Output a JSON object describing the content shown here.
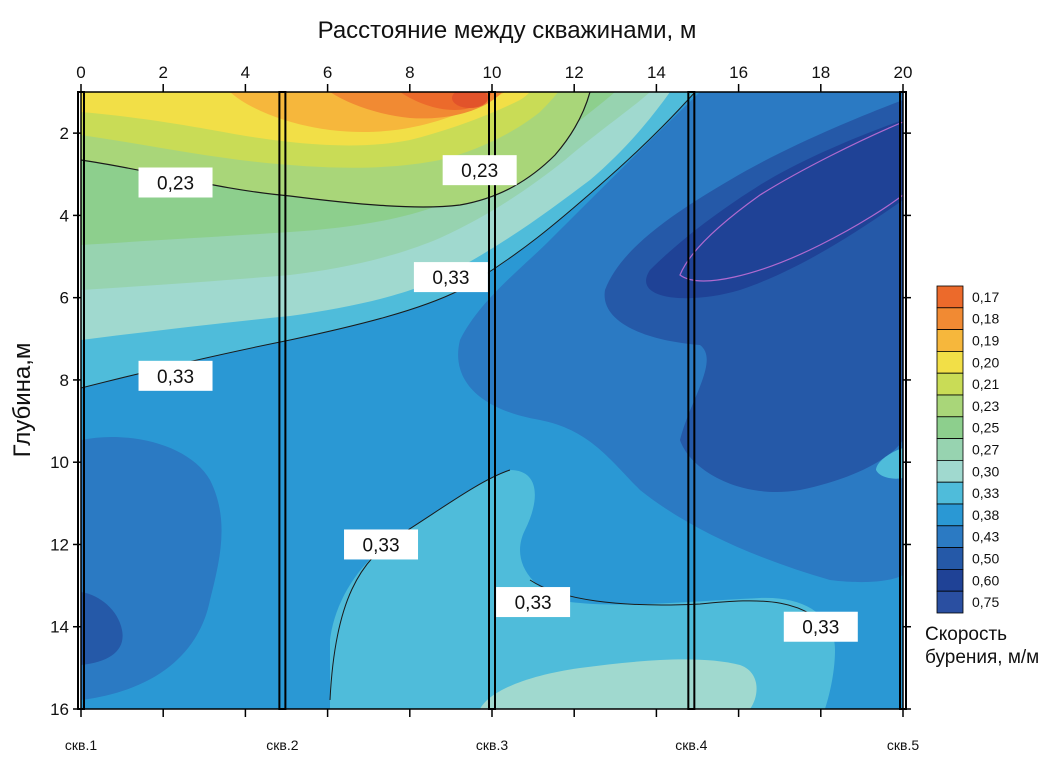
{
  "chart_data": {
    "type": "heatmap",
    "title": "Расстояние между скважинами, м",
    "xlabel": "Расстояние между скважинами, м",
    "ylabel": "Глубина,м",
    "xlim": [
      0,
      20
    ],
    "ylim": [
      16,
      1
    ],
    "x_ticks": [
      0,
      2,
      4,
      6,
      8,
      10,
      12,
      14,
      16,
      18,
      20
    ],
    "y_ticks": [
      2,
      4,
      6,
      8,
      10,
      12,
      14,
      16
    ],
    "wells": [
      {
        "label": "скв.1",
        "x": 0
      },
      {
        "label": "скв.2",
        "x": 4.9
      },
      {
        "label": "скв.3",
        "x": 10
      },
      {
        "label": "скв.4",
        "x": 14.85
      },
      {
        "label": "скв.5",
        "x": 20
      }
    ],
    "colorbar": {
      "title_line1": "Скорость",
      "title_line2": "бурения, м/м",
      "levels": [
        {
          "label": "0,17",
          "color": "#ec6a2b"
        },
        {
          "label": "0,18",
          "color": "#f18a33"
        },
        {
          "label": "0,19",
          "color": "#f6b73c"
        },
        {
          "label": "0,20",
          "color": "#f2df47"
        },
        {
          "label": "0,21",
          "color": "#c9dc56"
        },
        {
          "label": "0,23",
          "color": "#a9d679"
        },
        {
          "label": "0,25",
          "color": "#8dcf8d"
        },
        {
          "label": "0,27",
          "color": "#97d3b0"
        },
        {
          "label": "0,30",
          "color": "#a0d9cf"
        },
        {
          "label": "0,33",
          "color": "#4fbcda"
        },
        {
          "label": "0,38",
          "color": "#2a98d4"
        },
        {
          "label": "0,43",
          "color": "#2b7ac3"
        },
        {
          "label": "0,50",
          "color": "#2559a8"
        },
        {
          "label": "0,60",
          "color": "#1f4296"
        },
        {
          "label": "0,75",
          "color": "#2a4fa1"
        }
      ]
    },
    "contour_labels": [
      {
        "text": "0,23",
        "x": 2.3,
        "y": 3.2
      },
      {
        "text": "0,23",
        "x": 9.7,
        "y": 2.9
      },
      {
        "text": "0,33",
        "x": 9.0,
        "y": 5.5
      },
      {
        "text": "0,33",
        "x": 2.3,
        "y": 7.9
      },
      {
        "text": "0,33",
        "x": 7.3,
        "y": 12.0
      },
      {
        "text": "0,33",
        "x": 11.0,
        "y": 13.4
      },
      {
        "text": "0,33",
        "x": 18.0,
        "y": 14.0
      }
    ]
  }
}
